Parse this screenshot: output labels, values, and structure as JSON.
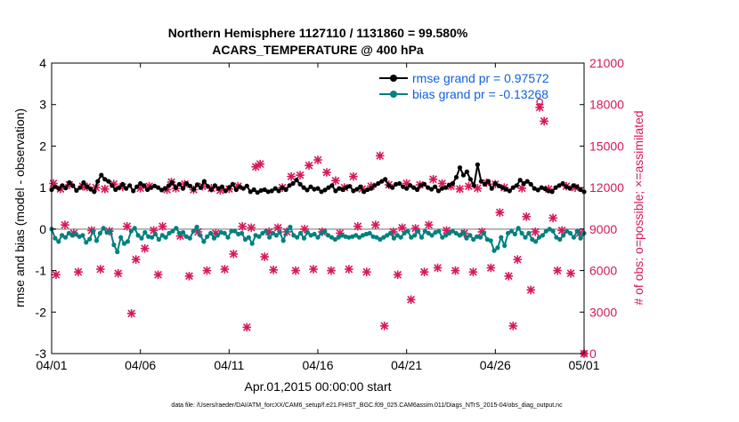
{
  "chart_data": {
    "type": "line",
    "title": "Northern Hemisphere 1127110 / 1131860 = 99.580%",
    "subtitle": "ACARS_TEMPERATURE @ 400 hPa",
    "xlabel": "Apr.01,2015 00:00:00 start",
    "ylabel": "rmse and bias (model - observation)",
    "y2label": "# of obs: o=possible; ×=assimilated",
    "footer": "data file: /Users/raeder/DAI/ATM_forcXX/CAM6_setup/f.e21.FHIST_BGC.f09_025.CAM6assim.011/Diags_NTrS_2015-04/obs_diag_output.nc",
    "xlim": [
      0,
      30
    ],
    "x_ticks": [
      0,
      5,
      10,
      15,
      20,
      25,
      30
    ],
    "x_tick_labels": [
      "04/01",
      "04/06",
      "04/11",
      "04/16",
      "04/21",
      "04/26",
      "05/01"
    ],
    "ylim": [
      -3,
      4
    ],
    "y_ticks": [
      -3,
      -2,
      -1,
      0,
      1,
      2,
      3,
      4
    ],
    "y_tick_labels": [
      "-3",
      "-2",
      "-1",
      "0",
      "1",
      "2",
      "3",
      "4"
    ],
    "y2lim": [
      0,
      21000
    ],
    "y2_ticks": [
      0,
      3000,
      6000,
      9000,
      12000,
      15000,
      18000,
      21000
    ],
    "y2_tick_labels": [
      "0",
      "3000",
      "6000",
      "9000",
      "12000",
      "15000",
      "18000",
      "21000"
    ],
    "legend_position": "top-right",
    "legend": [
      {
        "name": "rmse grand pr = 0.97572",
        "color": "#000000"
      },
      {
        "name": "bias grand pr = -0.13268",
        "color": "#008080"
      }
    ],
    "colors": {
      "rmse": "#000000",
      "bias": "#008080",
      "obs": "#d6185a",
      "zero_line": "#b4b4b4",
      "legend_text": "#1060e0"
    },
    "series": [
      {
        "name": "rmse",
        "color": "#000000",
        "values": [
          0.95,
          1.02,
          0.98,
          1.05,
          0.99,
          1.12,
          1.05,
          0.93,
          1.0,
          1.12,
          1.02,
          0.96,
          0.9,
          1.15,
          1.3,
          1.2,
          1.15,
          1.05,
          0.95,
          1.0,
          1.08,
          0.98,
          1.05,
          0.92,
          1.02,
          1.1,
          1.05,
          0.95,
          1.0,
          1.04,
          1.0,
          0.94,
          0.98,
          1.05,
          1.12,
          1.0,
          1.08,
          0.98,
          1.1,
          1.04,
          0.96,
          1.07,
          1.0,
          1.15,
          1.03,
          0.95,
          1.05,
          0.98,
          1.02,
          0.92,
          1.0,
          1.08,
          0.95,
          1.02,
          0.98,
          1.04,
          0.9,
          0.95,
          0.88,
          0.93,
          0.95,
          0.9,
          0.92,
          0.98,
          0.92,
          1.0,
          0.95,
          1.05,
          1.1,
          1.18,
          1.08,
          1.0,
          0.94,
          1.02,
          0.96,
          0.98,
          0.9,
          0.94,
          1.0,
          1.05,
          0.92,
          0.98,
          0.95,
          1.0,
          1.03,
          0.92,
          0.96,
          1.02,
          0.9,
          0.95,
          0.98,
          1.05,
          1.1,
          1.15,
          1.2,
          1.05,
          1.0,
          1.08,
          1.1,
          1.02,
          0.98,
          1.05,
          1.0,
          0.95,
          1.05,
          1.08,
          1.0,
          0.96,
          1.02,
          0.92,
          0.98,
          1.0,
          1.06,
          1.1,
          1.25,
          1.48,
          1.3,
          1.38,
          1.2,
          1.05,
          1.55,
          1.15,
          1.08,
          1.15,
          0.98,
          1.1,
          1.04,
          1.0,
          0.96,
          0.92,
          1.0,
          1.05,
          1.18,
          1.1,
          1.15,
          1.08,
          0.98,
          0.94,
          1.0,
          0.97,
          0.92,
          0.9,
          1.0,
          1.05,
          1.1,
          1.02,
          0.98,
          1.05,
          1.02,
          0.95,
          0.9
        ]
      },
      {
        "name": "bias",
        "color": "#008080",
        "values": [
          0.0,
          -0.22,
          -0.3,
          -0.15,
          -0.2,
          -0.1,
          -0.15,
          -0.12,
          -0.18,
          -0.15,
          -0.32,
          -0.24,
          -0.05,
          -0.28,
          -0.1,
          0.02,
          -0.08,
          -0.05,
          -0.38,
          -0.55,
          -0.2,
          -0.35,
          -0.3,
          -0.05,
          0.02,
          -0.15,
          -0.22,
          -0.08,
          -0.18,
          -0.2,
          -0.12,
          -0.25,
          -0.15,
          -0.2,
          -0.1,
          -0.05,
          0.02,
          -0.1,
          -0.08,
          -0.18,
          -0.22,
          -0.05,
          0.05,
          -0.15,
          -0.3,
          -0.18,
          -0.1,
          -0.22,
          -0.15,
          -0.08,
          -0.1,
          -0.2,
          -0.05,
          -0.05,
          -0.12,
          -0.1,
          -0.25,
          -0.2,
          -0.35,
          -0.15,
          -0.18,
          -0.1,
          -0.05,
          -0.2,
          -0.1,
          -0.15,
          -0.08,
          -0.28,
          -0.05,
          0.05,
          -0.15,
          -0.2,
          -0.1,
          -0.22,
          -0.08,
          -0.15,
          -0.12,
          -0.2,
          -0.1,
          -0.05,
          -0.15,
          -0.2,
          -0.25,
          -0.2,
          -0.15,
          -0.18,
          -0.2,
          -0.18,
          -0.15,
          -0.2,
          -0.15,
          -0.12,
          -0.1,
          -0.18,
          -0.2,
          -0.25,
          -0.2,
          -0.15,
          -0.1,
          -0.22,
          -0.15,
          -0.2,
          -0.1,
          -0.05,
          -0.2,
          -0.15,
          -0.05,
          -0.2,
          -0.05,
          -0.1,
          -0.15,
          -0.08,
          -0.05,
          -0.2,
          -0.15,
          -0.1,
          -0.05,
          -0.1,
          -0.15,
          -0.08,
          -0.22,
          -0.15,
          -0.25,
          -0.18,
          -0.2,
          -0.1,
          -0.25,
          -0.28,
          -0.52,
          -0.45,
          -0.2,
          -0.4,
          -0.1,
          -0.05,
          -0.12,
          0.02,
          -0.1,
          -0.2,
          -0.1,
          -0.25,
          -0.3,
          -0.2,
          -0.15,
          -0.05,
          0.0,
          -0.05,
          -0.2,
          -0.25,
          -0.15,
          -0.05,
          -0.1,
          -0.2,
          -0.05,
          -0.22,
          -0.1
        ]
      },
      {
        "name": "obs_assimilated",
        "color": "#d6185a",
        "points": [
          [
            0.1,
            12300
          ],
          [
            0.25,
            5700
          ],
          [
            0.5,
            11900
          ],
          [
            0.75,
            9300
          ],
          [
            1.0,
            12200
          ],
          [
            1.25,
            8700
          ],
          [
            1.5,
            5900
          ],
          [
            1.75,
            12100
          ],
          [
            2.0,
            12050
          ],
          [
            2.25,
            8900
          ],
          [
            2.5,
            12000
          ],
          [
            2.75,
            6100
          ],
          [
            3.0,
            11900
          ],
          [
            3.25,
            8850
          ],
          [
            3.5,
            12250
          ],
          [
            3.75,
            5800
          ],
          [
            4.0,
            12050
          ],
          [
            4.25,
            9200
          ],
          [
            4.5,
            2900
          ],
          [
            4.75,
            6800
          ],
          [
            5.0,
            11950
          ],
          [
            5.25,
            7600
          ],
          [
            5.5,
            12100
          ],
          [
            5.75,
            8900
          ],
          [
            6.0,
            5700
          ],
          [
            6.25,
            9200
          ],
          [
            6.5,
            11850
          ],
          [
            6.75,
            12400
          ],
          [
            7.0,
            11950
          ],
          [
            7.25,
            8500
          ],
          [
            7.5,
            12250
          ],
          [
            7.75,
            5600
          ],
          [
            8.0,
            11850
          ],
          [
            8.25,
            8800
          ],
          [
            8.5,
            12100
          ],
          [
            8.75,
            6000
          ],
          [
            9.0,
            11950
          ],
          [
            9.25,
            8700
          ],
          [
            9.5,
            11800
          ],
          [
            9.75,
            6100
          ],
          [
            10.0,
            11900
          ],
          [
            10.25,
            7200
          ],
          [
            10.5,
            12100
          ],
          [
            10.75,
            9200
          ],
          [
            11.0,
            1900
          ],
          [
            11.25,
            9100
          ],
          [
            11.5,
            13500
          ],
          [
            11.75,
            13700
          ],
          [
            12.0,
            7000
          ],
          [
            12.25,
            8800
          ],
          [
            12.5,
            6050
          ],
          [
            12.75,
            9100
          ],
          [
            13.0,
            12000
          ],
          [
            13.25,
            8800
          ],
          [
            13.5,
            12800
          ],
          [
            13.75,
            6000
          ],
          [
            14.0,
            12900
          ],
          [
            14.25,
            9000
          ],
          [
            14.5,
            13600
          ],
          [
            14.75,
            6100
          ],
          [
            15.0,
            14000
          ],
          [
            15.25,
            8800
          ],
          [
            15.5,
            13100
          ],
          [
            15.75,
            6000
          ],
          [
            16.0,
            12500
          ],
          [
            16.25,
            8700
          ],
          [
            16.5,
            12000
          ],
          [
            16.75,
            6100
          ],
          [
            17.0,
            12800
          ],
          [
            17.25,
            9200
          ],
          [
            17.5,
            11900
          ],
          [
            17.75,
            5900
          ],
          [
            18.0,
            12100
          ],
          [
            18.25,
            9300
          ],
          [
            18.5,
            14300
          ],
          [
            18.75,
            2000
          ],
          [
            19.0,
            12200
          ],
          [
            19.25,
            8800
          ],
          [
            19.5,
            5700
          ],
          [
            19.75,
            9100
          ],
          [
            20.0,
            12300
          ],
          [
            20.25,
            3900
          ],
          [
            20.5,
            9050
          ],
          [
            20.75,
            12200
          ],
          [
            21.0,
            5900
          ],
          [
            21.25,
            9300
          ],
          [
            21.5,
            12600
          ],
          [
            21.75,
            6200
          ],
          [
            22.0,
            12300
          ],
          [
            22.25,
            8900
          ],
          [
            22.5,
            12100
          ],
          [
            22.75,
            6000
          ],
          [
            23.0,
            11900
          ],
          [
            23.25,
            8700
          ],
          [
            23.5,
            12100
          ],
          [
            23.75,
            5900
          ],
          [
            24.0,
            11950
          ],
          [
            24.25,
            8800
          ],
          [
            24.5,
            12350
          ],
          [
            24.75,
            6200
          ],
          [
            25.0,
            12250
          ],
          [
            25.25,
            10200
          ],
          [
            25.5,
            12000
          ],
          [
            25.75,
            5600
          ],
          [
            26.0,
            2000
          ],
          [
            26.25,
            6800
          ],
          [
            26.5,
            11950
          ],
          [
            26.75,
            9900
          ],
          [
            27.0,
            4600
          ],
          [
            27.25,
            8800
          ],
          [
            27.5,
            17800
          ],
          [
            27.75,
            16800
          ],
          [
            28.0,
            11900
          ],
          [
            28.25,
            9800
          ],
          [
            28.5,
            6000
          ],
          [
            28.75,
            8900
          ],
          [
            29.0,
            12100
          ],
          [
            29.25,
            5800
          ],
          [
            29.5,
            12000
          ],
          [
            29.75,
            8700
          ],
          [
            30.0,
            0
          ]
        ]
      },
      {
        "name": "obs_possible",
        "color": "#d6185a",
        "points": [
          [
            27.5,
            18200
          ],
          [
            30.0,
            0
          ]
        ]
      }
    ]
  }
}
